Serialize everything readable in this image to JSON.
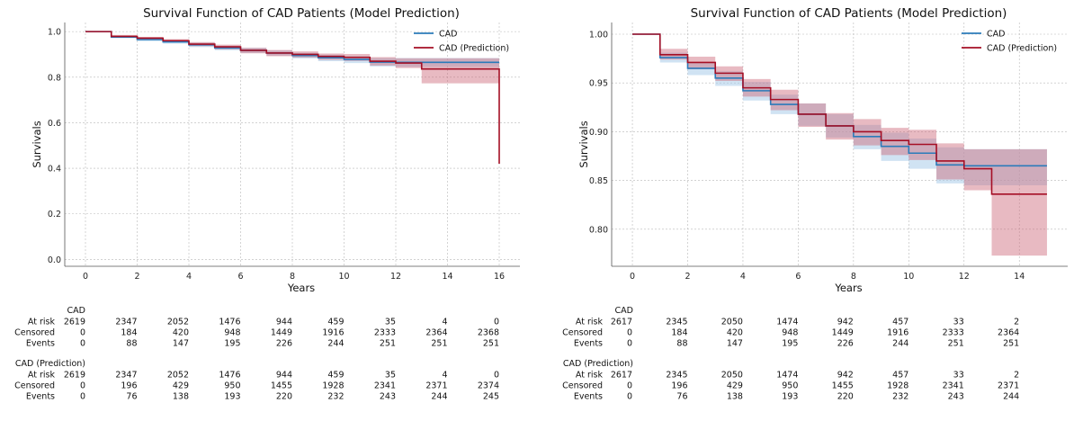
{
  "colors": {
    "cad": "#2b7bba",
    "cad_band": "#a9cce9",
    "pred": "#a50f25",
    "pred_band": "#cc6677",
    "grid": "#b8b8b8"
  },
  "chart_data": [
    {
      "type": "line",
      "title": "Survival Function of CAD Patients (Model Prediction)",
      "xlabel": "Years",
      "ylabel": "Survivals",
      "xlim": [
        -0.8,
        16.8
      ],
      "ylim": [
        -0.03,
        1.04
      ],
      "xticks": [
        0,
        2,
        4,
        6,
        8,
        10,
        12,
        14,
        16
      ],
      "xtick_labels": [
        "0",
        "2",
        "4",
        "6",
        "8",
        "10",
        "12",
        "14",
        "16"
      ],
      "yticks": [
        0.0,
        0.2,
        0.4,
        0.6,
        0.8,
        1.0
      ],
      "ytick_labels": [
        "0.0",
        "0.2",
        "0.4",
        "0.6",
        "0.8",
        "1.0"
      ],
      "grid": true,
      "legend_position": "top-right",
      "series": [
        {
          "name": "CAD",
          "color_key": "cad",
          "band_key": "cad_band",
          "x": [
            0,
            1,
            2,
            3,
            4,
            5,
            6,
            7,
            8,
            9,
            10,
            11,
            12,
            13,
            16
          ],
          "y": [
            1.0,
            0.976,
            0.965,
            0.955,
            0.942,
            0.928,
            0.918,
            0.906,
            0.895,
            0.885,
            0.878,
            0.866,
            0.865,
            0.865,
            0.865
          ],
          "lower": [
            1.0,
            0.971,
            0.958,
            0.947,
            0.932,
            0.918,
            0.906,
            0.894,
            0.882,
            0.87,
            0.862,
            0.847,
            0.845,
            0.845,
            0.845
          ],
          "upper": [
            1.0,
            0.981,
            0.971,
            0.962,
            0.951,
            0.938,
            0.929,
            0.918,
            0.907,
            0.899,
            0.893,
            0.884,
            0.884,
            0.884,
            0.884
          ]
        },
        {
          "name": "CAD (Prediction)",
          "color_key": "pred",
          "band_key": "pred_band",
          "x": [
            0,
            1,
            2,
            3,
            4,
            5,
            6,
            7,
            8,
            9,
            10,
            11,
            12,
            13,
            16
          ],
          "y": [
            1.0,
            0.979,
            0.971,
            0.96,
            0.945,
            0.933,
            0.918,
            0.906,
            0.9,
            0.891,
            0.887,
            0.87,
            0.862,
            0.836,
            0.836
          ],
          "lower": [
            1.0,
            0.974,
            0.964,
            0.952,
            0.936,
            0.922,
            0.905,
            0.892,
            0.886,
            0.876,
            0.871,
            0.851,
            0.84,
            0.773,
            0.773
          ],
          "upper": [
            1.0,
            0.985,
            0.977,
            0.967,
            0.954,
            0.943,
            0.929,
            0.919,
            0.913,
            0.904,
            0.902,
            0.888,
            0.883,
            0.883,
            0.883
          ],
          "final_drop_to": 0.42
        }
      ],
      "risk_table": {
        "timepoints": [
          "0",
          "2",
          "4",
          "6",
          "8",
          "10",
          "12",
          "14",
          "16"
        ],
        "groups": [
          {
            "name": "CAD",
            "rows": [
              {
                "label": "At risk",
                "values": [
                  "2619",
                  "2347",
                  "2052",
                  "1476",
                  "944",
                  "459",
                  "35",
                  "4",
                  "0"
                ]
              },
              {
                "label": "Censored",
                "values": [
                  "0",
                  "184",
                  "420",
                  "948",
                  "1449",
                  "1916",
                  "2333",
                  "2364",
                  "2368"
                ]
              },
              {
                "label": "Events",
                "values": [
                  "0",
                  "88",
                  "147",
                  "195",
                  "226",
                  "244",
                  "251",
                  "251",
                  "251"
                ]
              }
            ]
          },
          {
            "name": "CAD (Prediction)",
            "rows": [
              {
                "label": "At risk",
                "values": [
                  "2619",
                  "2347",
                  "2052",
                  "1476",
                  "944",
                  "459",
                  "35",
                  "4",
                  "0"
                ]
              },
              {
                "label": "Censored",
                "values": [
                  "0",
                  "196",
                  "429",
                  "950",
                  "1455",
                  "1928",
                  "2341",
                  "2371",
                  "2374"
                ]
              },
              {
                "label": "Events",
                "values": [
                  "0",
                  "76",
                  "138",
                  "193",
                  "220",
                  "232",
                  "243",
                  "244",
                  "245"
                ]
              }
            ]
          }
        ]
      }
    },
    {
      "type": "line",
      "title": "Survival Function of CAD Patients (Model Prediction)",
      "xlabel": "Years",
      "ylabel": "Survivals",
      "xlim": [
        -0.75,
        15.75
      ],
      "ylim": [
        0.762,
        1.012
      ],
      "xticks": [
        0,
        2,
        4,
        6,
        8,
        10,
        12,
        14
      ],
      "xtick_labels": [
        "0",
        "2",
        "4",
        "6",
        "8",
        "10",
        "12",
        "14"
      ],
      "yticks": [
        0.8,
        0.85,
        0.9,
        0.95,
        1.0
      ],
      "ytick_labels": [
        "0.80",
        "0.85",
        "0.90",
        "0.95",
        "1.00"
      ],
      "grid": true,
      "legend_position": "top-right",
      "series": [
        {
          "name": "CAD",
          "color_key": "cad",
          "band_key": "cad_band",
          "x": [
            0,
            1,
            2,
            3,
            4,
            5,
            6,
            7,
            8,
            9,
            10,
            11,
            12,
            13,
            15
          ],
          "y": [
            1.0,
            0.976,
            0.965,
            0.955,
            0.942,
            0.928,
            0.918,
            0.906,
            0.895,
            0.885,
            0.878,
            0.866,
            0.865,
            0.865,
            0.865
          ],
          "lower": [
            1.0,
            0.971,
            0.958,
            0.947,
            0.932,
            0.918,
            0.906,
            0.894,
            0.882,
            0.87,
            0.862,
            0.847,
            0.845,
            0.845,
            0.845
          ],
          "upper": [
            1.0,
            0.981,
            0.971,
            0.962,
            0.951,
            0.938,
            0.929,
            0.918,
            0.907,
            0.899,
            0.893,
            0.884,
            0.882,
            0.882,
            0.882
          ]
        },
        {
          "name": "CAD (Prediction)",
          "color_key": "pred",
          "band_key": "pred_band",
          "x": [
            0,
            1,
            2,
            3,
            4,
            5,
            6,
            7,
            8,
            9,
            10,
            11,
            12,
            13,
            15
          ],
          "y": [
            1.0,
            0.979,
            0.971,
            0.96,
            0.945,
            0.933,
            0.918,
            0.906,
            0.9,
            0.891,
            0.887,
            0.87,
            0.862,
            0.836,
            0.836
          ],
          "lower": [
            1.0,
            0.974,
            0.964,
            0.952,
            0.936,
            0.922,
            0.905,
            0.892,
            0.886,
            0.876,
            0.871,
            0.851,
            0.84,
            0.773,
            0.773
          ],
          "upper": [
            1.0,
            0.985,
            0.977,
            0.967,
            0.954,
            0.943,
            0.929,
            0.919,
            0.913,
            0.904,
            0.902,
            0.888,
            0.882,
            0.882,
            0.882
          ]
        }
      ],
      "risk_table": {
        "timepoints": [
          "0",
          "2",
          "4",
          "6",
          "8",
          "10",
          "12",
          "14"
        ],
        "groups": [
          {
            "name": "CAD",
            "rows": [
              {
                "label": "At risk",
                "values": [
                  "2617",
                  "2345",
                  "2050",
                  "1474",
                  "942",
                  "457",
                  "33",
                  "2"
                ]
              },
              {
                "label": "Censored",
                "values": [
                  "0",
                  "184",
                  "420",
                  "948",
                  "1449",
                  "1916",
                  "2333",
                  "2364"
                ]
              },
              {
                "label": "Events",
                "values": [
                  "0",
                  "88",
                  "147",
                  "195",
                  "226",
                  "244",
                  "251",
                  "251"
                ]
              }
            ]
          },
          {
            "name": "CAD (Prediction)",
            "rows": [
              {
                "label": "At risk",
                "values": [
                  "2617",
                  "2345",
                  "2050",
                  "1474",
                  "942",
                  "457",
                  "33",
                  "2"
                ]
              },
              {
                "label": "Censored",
                "values": [
                  "0",
                  "196",
                  "429",
                  "950",
                  "1455",
                  "1928",
                  "2341",
                  "2371"
                ]
              },
              {
                "label": "Events",
                "values": [
                  "0",
                  "76",
                  "138",
                  "193",
                  "220",
                  "232",
                  "243",
                  "244"
                ]
              }
            ]
          }
        ]
      }
    }
  ]
}
